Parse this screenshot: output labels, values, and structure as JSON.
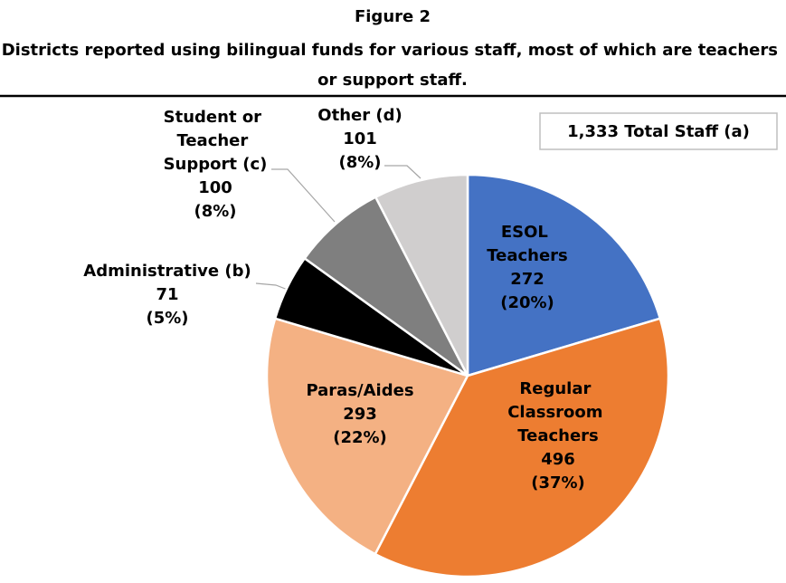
{
  "chart_data": {
    "type": "pie",
    "title": "Figure 2",
    "subtitle": "Districts reported using bilingual funds for various staff, most of which are teachers or support staff.",
    "annotation": "1,333 Total Staff (a)",
    "categories": [
      "ESOL Teachers",
      "Regular Classroom Teachers",
      "Paras/Aides",
      "Administrative (b)",
      "Student or Teacher Support (c)",
      "Other (d)"
    ],
    "values": [
      272,
      496,
      293,
      71,
      100,
      101
    ],
    "percent_labels": [
      "(20%)",
      "(37%)",
      "(22%)",
      "(5%)",
      "(8%)",
      "(8%)"
    ],
    "colors": [
      "#4472c4",
      "#ed7d31",
      "#f4b183",
      "#000000",
      "#7f7f7f",
      "#d0cece"
    ]
  }
}
